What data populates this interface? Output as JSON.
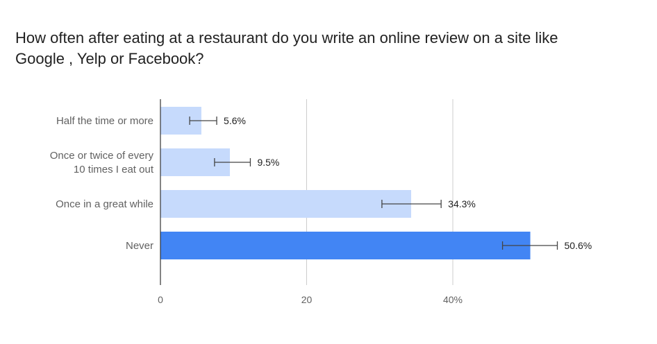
{
  "chart_data": {
    "type": "bar",
    "orientation": "horizontal",
    "title_lines": [
      "How often after eating at a restaurant do you write an online review on a site like",
      "Google , Yelp or Facebook?"
    ],
    "categories": [
      [
        "Half the time or more"
      ],
      [
        "Once or twice of every",
        "10 times I eat out"
      ],
      [
        "Once in a great while"
      ],
      [
        "Never"
      ]
    ],
    "values": [
      5.6,
      9.5,
      34.3,
      50.6
    ],
    "value_labels": [
      "5.6%",
      "9.5%",
      "34.3%",
      "50.6%"
    ],
    "error_bars": [
      {
        "low": 4.0,
        "high": 7.7
      },
      {
        "low": 7.4,
        "high": 12.3
      },
      {
        "low": 30.3,
        "high": 38.4
      },
      {
        "low": 46.8,
        "high": 54.3
      }
    ],
    "highlighted_index": 3,
    "xlim": [
      0,
      60
    ],
    "x_ticks": [
      0,
      20,
      40
    ],
    "x_tick_labels": [
      "0",
      "20",
      "40%"
    ],
    "grid": true,
    "legend": "none"
  },
  "colors": {
    "bar": "#c6dafc",
    "bar_highlight": "#4285f4",
    "gridline": "#cccccc",
    "axis": "#333333",
    "error_bar": "#444444"
  }
}
